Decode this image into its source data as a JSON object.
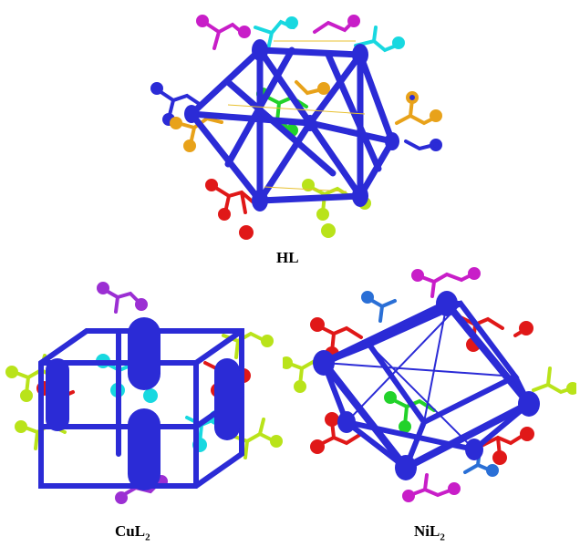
{
  "figure": {
    "panels": [
      {
        "id": "hl",
        "label": "HL",
        "label_sub": ""
      },
      {
        "id": "cul2",
        "label": "CuL",
        "label_sub": "2"
      },
      {
        "id": "nil2",
        "label": "NiL",
        "label_sub": "2"
      }
    ]
  },
  "colors": {
    "framework": "#2b2bd6",
    "framework_dark": "#1515a8",
    "red": "#e01818",
    "yellowgreen": "#b9e31a",
    "magenta": "#c81ec8",
    "purple": "#9b2fd3",
    "cyan": "#18d8e0",
    "orange": "#e8a21a",
    "green": "#22d22a",
    "blue_lig": "#2a6fd6",
    "hbond": "#e8c030"
  }
}
